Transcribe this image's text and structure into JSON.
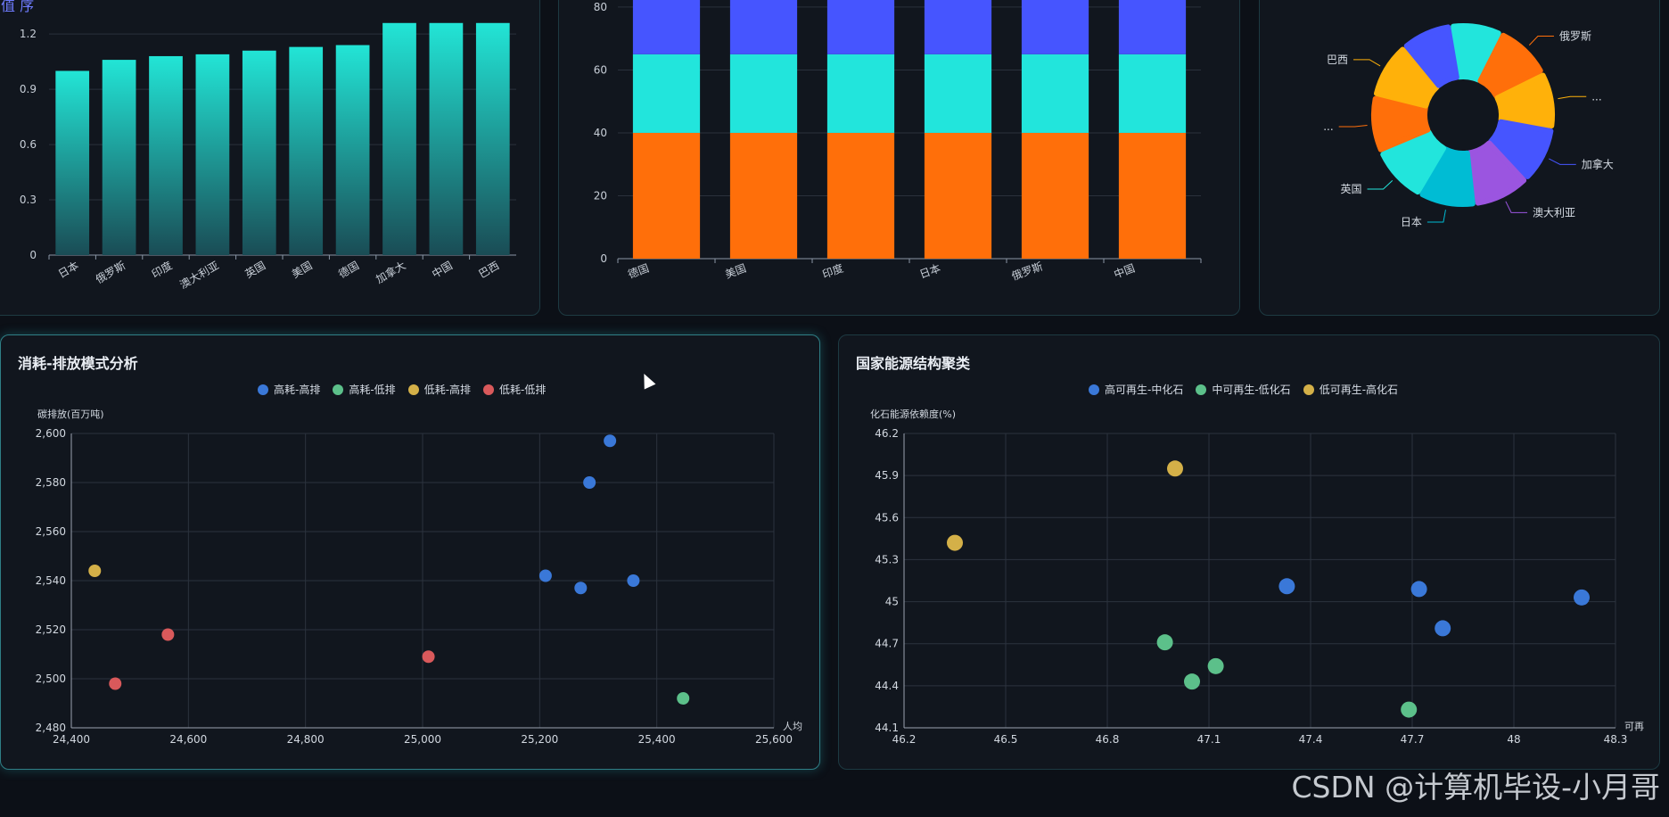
{
  "watermark": "CSDN @计算机毕设-小月哥",
  "top_left_label": "值 序",
  "panels": {
    "bottom_left_title": "消耗-排放模式分析",
    "bottom_right_title": "国家能源结构聚类"
  },
  "chart_data": [
    {
      "id": "bar_sorted",
      "type": "bar",
      "categories": [
        "日本",
        "俄罗斯",
        "印度",
        "澳大利亚",
        "英国",
        "美国",
        "德国",
        "加拿大",
        "中国",
        "巴西"
      ],
      "values": [
        1.0,
        1.06,
        1.08,
        1.09,
        1.11,
        1.13,
        1.14,
        1.26,
        1.26,
        1.26
      ],
      "yticks": [
        0,
        0.3,
        0.6,
        0.9,
        1.2
      ],
      "ylim": [
        0,
        1.38
      ],
      "grid": true
    },
    {
      "id": "stacked_bar",
      "type": "bar",
      "categories": [
        "德国",
        "美国",
        "印度",
        "日本",
        "俄罗斯",
        "中国"
      ],
      "series": [
        {
          "values": [
            40,
            40,
            40,
            40,
            40,
            40
          ],
          "color": "#ff6f0a"
        },
        {
          "values": [
            25,
            25,
            25,
            25,
            25,
            25
          ],
          "color": "#22e5dc"
        },
        {
          "values": [
            35,
            35,
            35,
            35,
            35,
            35
          ],
          "color": "#4655ff"
        }
      ],
      "yticks": [
        0,
        20,
        40,
        60,
        80
      ],
      "ylim": [
        0,
        100
      ],
      "grid": true
    },
    {
      "id": "rose_pie",
      "type": "pie",
      "labels": [
        "俄罗斯",
        "...",
        "加拿大",
        "澳大利亚",
        "日本",
        "英国",
        "...",
        "巴西"
      ],
      "slices": [
        {
          "label": "",
          "value": 9,
          "color": "#22e5dc"
        },
        {
          "label": "俄罗斯",
          "value": 10,
          "color": "#ff6f0a"
        },
        {
          "label": "...",
          "value": 10,
          "color": "#ffb10a"
        },
        {
          "label": "加拿大",
          "value": 10,
          "color": "#4655ff"
        },
        {
          "label": "澳大利亚",
          "value": 10,
          "color": "#9b55e0"
        },
        {
          "label": "日本",
          "value": 10,
          "color": "#00bcd4"
        },
        {
          "label": "英国",
          "value": 10,
          "color": "#22e5dc"
        },
        {
          "label": "...",
          "value": 10,
          "color": "#ff6f0a"
        },
        {
          "label": "巴西",
          "value": 10,
          "color": "#ffb10a"
        },
        {
          "label": "",
          "value": 9,
          "color": "#4655ff"
        }
      ],
      "colors": [
        "#22e5dc",
        "#ff6f0a",
        "#ffb10a",
        "#4655ff",
        "#9b55e0",
        "#00bcd4",
        "#22e5dc",
        "#ff6f0a",
        "#ffb10a",
        "#4655ff"
      ]
    },
    {
      "id": "scatter_consumption",
      "type": "scatter",
      "ylabel": "碳排放(百万吨)",
      "xlabel": "人均",
      "xlim": [
        24400,
        25600
      ],
      "ylim": [
        2480,
        2600
      ],
      "xticks": [
        24400,
        24600,
        24800,
        25000,
        25200,
        25400,
        25600
      ],
      "yticks": [
        2480,
        2500,
        2520,
        2540,
        2560,
        2580,
        2600
      ],
      "series": [
        {
          "name": "高耗-高排",
          "color": "#3a78d8",
          "points": [
            [
              25320,
              2597
            ],
            [
              25285,
              2580
            ],
            [
              25210,
              2542
            ],
            [
              25270,
              2537
            ],
            [
              25360,
              2540
            ]
          ]
        },
        {
          "name": "高耗-低排",
          "color": "#5cc08a",
          "points": [
            [
              25445,
              2492
            ]
          ]
        },
        {
          "name": "低耗-高排",
          "color": "#d4b048",
          "points": [
            [
              24440,
              2544
            ]
          ]
        },
        {
          "name": "低耗-低排",
          "color": "#d9595b",
          "points": [
            [
              24565,
              2518
            ],
            [
              24475,
              2498
            ],
            [
              25010,
              2509
            ]
          ]
        }
      ]
    },
    {
      "id": "scatter_structure",
      "type": "scatter",
      "ylabel": "化石能源依赖度(%)",
      "xlabel": "可再",
      "xlim": [
        46.2,
        48.3
      ],
      "ylim": [
        44.1,
        46.2
      ],
      "xticks": [
        46.2,
        46.5,
        46.8,
        47.1,
        47.4,
        47.7,
        48,
        48.3
      ],
      "yticks": [
        44.1,
        44.4,
        44.7,
        45,
        45.3,
        45.6,
        45.9,
        46.2
      ],
      "series": [
        {
          "name": "高可再生-中化石",
          "color": "#3a78d8",
          "points": [
            [
              47.33,
              45.11
            ],
            [
              47.72,
              45.09
            ],
            [
              47.79,
              44.81
            ],
            [
              48.2,
              45.03
            ]
          ]
        },
        {
          "name": "中可再生-低化石",
          "color": "#5cc08a",
          "points": [
            [
              46.97,
              44.71
            ],
            [
              47.05,
              44.43
            ],
            [
              47.12,
              44.54
            ],
            [
              47.69,
              44.23
            ]
          ]
        },
        {
          "name": "低可再生-高化石",
          "color": "#d4b048",
          "points": [
            [
              46.35,
              45.42
            ],
            [
              47.0,
              45.95
            ]
          ]
        }
      ]
    }
  ]
}
